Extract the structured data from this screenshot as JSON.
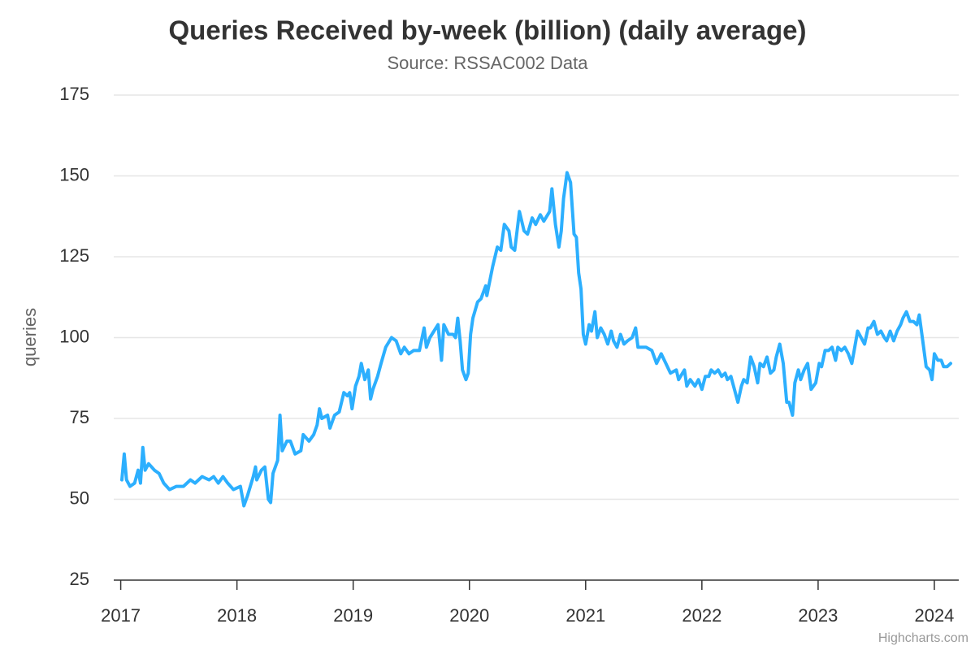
{
  "chart_data": {
    "type": "line",
    "title": "Queries Received by-week (billion) (daily average)",
    "subtitle": "Source: RSSAC002 Data",
    "y_label": "queries",
    "credits": "Highcharts.com",
    "xlim": [
      2016.94,
      2024.21
    ],
    "xticks": [
      2017,
      2018,
      2019,
      2020,
      2021,
      2022,
      2023,
      2024
    ],
    "ylim": [
      25,
      175
    ],
    "yticks": [
      25,
      50,
      75,
      100,
      125,
      150,
      175
    ],
    "grid": true,
    "x": [
      2017.01,
      2017.03,
      2017.05,
      2017.08,
      2017.12,
      2017.15,
      2017.17,
      2017.19,
      2017.21,
      2017.24,
      2017.29,
      2017.33,
      2017.37,
      2017.42,
      2017.48,
      2017.54,
      2017.6,
      2017.64,
      2017.7,
      2017.76,
      2017.8,
      2017.84,
      2017.88,
      2017.92,
      2017.97,
      2018.03,
      2018.06,
      2018.09,
      2018.14,
      2018.16,
      2018.17,
      2018.21,
      2018.24,
      2018.27,
      2018.29,
      2018.31,
      2018.35,
      2018.37,
      2018.39,
      2018.43,
      2018.46,
      2018.5,
      2018.55,
      2018.57,
      2018.62,
      2018.66,
      2018.69,
      2018.71,
      2018.73,
      2018.78,
      2018.8,
      2018.84,
      2018.88,
      2018.92,
      2018.95,
      2018.97,
      2018.99,
      2019.02,
      2019.05,
      2019.07,
      2019.1,
      2019.13,
      2019.15,
      2019.17,
      2019.21,
      2019.24,
      2019.28,
      2019.33,
      2019.37,
      2019.41,
      2019.44,
      2019.48,
      2019.52,
      2019.57,
      2019.61,
      2019.63,
      2019.66,
      2019.73,
      2019.76,
      2019.78,
      2019.82,
      2019.86,
      2019.88,
      2019.9,
      2019.92,
      2019.94,
      2019.97,
      2019.99,
      2020.01,
      2020.03,
      2020.07,
      2020.1,
      2020.14,
      2020.15,
      2020.2,
      2020.24,
      2020.27,
      2020.3,
      2020.34,
      2020.36,
      2020.39,
      2020.43,
      2020.47,
      2020.5,
      2020.54,
      2020.57,
      2020.61,
      2020.64,
      2020.69,
      2020.71,
      2020.74,
      2020.77,
      2020.79,
      2020.81,
      2020.84,
      2020.87,
      2020.9,
      2020.92,
      2020.94,
      2020.96,
      2020.98,
      2021.0,
      2021.03,
      2021.05,
      2021.08,
      2021.1,
      2021.13,
      2021.16,
      2021.19,
      2021.22,
      2021.24,
      2021.27,
      2021.3,
      2021.33,
      2021.36,
      2021.4,
      2021.43,
      2021.45,
      2021.48,
      2021.52,
      2021.57,
      2021.61,
      2021.65,
      2021.69,
      2021.73,
      2021.78,
      2021.8,
      2021.85,
      2021.87,
      2021.9,
      2021.94,
      2021.97,
      2022.0,
      2022.03,
      2022.06,
      2022.08,
      2022.11,
      2022.14,
      2022.17,
      2022.2,
      2022.22,
      2022.25,
      2022.28,
      2022.31,
      2022.34,
      2022.36,
      2022.39,
      2022.42,
      2022.45,
      2022.48,
      2022.5,
      2022.53,
      2022.56,
      2022.59,
      2022.62,
      2022.64,
      2022.67,
      2022.7,
      2022.73,
      2022.75,
      2022.78,
      2022.8,
      2022.83,
      2022.85,
      2022.88,
      2022.91,
      2022.94,
      2022.98,
      2023.01,
      2023.03,
      2023.06,
      2023.09,
      2023.12,
      2023.15,
      2023.17,
      2023.2,
      2023.23,
      2023.26,
      2023.29,
      2023.31,
      2023.34,
      2023.37,
      2023.4,
      2023.43,
      2023.45,
      2023.48,
      2023.51,
      2023.54,
      2023.57,
      2023.59,
      2023.62,
      2023.65,
      2023.68,
      2023.71,
      2023.73,
      2023.76,
      2023.79,
      2023.82,
      2023.85,
      2023.87,
      2023.9,
      2023.93,
      2023.96,
      2023.98,
      2024.0,
      2024.03,
      2024.06,
      2024.08,
      2024.11,
      2024.14
    ],
    "series": [
      {
        "name": "queries",
        "color": "#2caffe",
        "values": [
          56,
          64,
          56,
          54,
          55,
          59,
          55,
          66,
          59,
          61,
          59,
          58,
          55,
          53,
          54,
          54,
          56,
          55,
          57,
          56,
          57,
          55,
          57,
          55,
          53,
          54,
          48,
          51,
          57,
          60,
          56,
          59,
          60,
          50,
          49,
          58,
          62,
          76,
          65,
          68,
          68,
          64,
          65,
          70,
          68,
          70,
          73,
          78,
          75,
          76,
          72,
          76,
          77,
          83,
          82,
          83,
          78,
          85,
          88,
          92,
          87,
          90,
          81,
          84,
          88,
          92,
          97,
          100,
          99,
          95,
          97,
          95,
          96,
          96,
          103,
          97,
          100,
          104,
          93,
          104,
          101,
          101,
          100,
          106,
          99,
          90,
          87,
          89,
          101,
          106,
          111,
          112,
          116,
          113,
          122,
          128,
          127,
          135,
          133,
          128,
          127,
          139,
          133,
          132,
          137,
          135,
          138,
          136,
          139,
          146,
          135,
          128,
          133,
          143,
          151,
          148,
          132,
          131,
          120,
          115,
          101,
          98,
          104,
          102,
          108,
          100,
          103,
          101,
          98,
          102,
          99,
          97,
          101,
          98,
          99,
          100,
          103,
          97,
          97,
          97,
          96,
          92,
          95,
          92,
          89,
          90,
          87,
          90,
          85,
          87,
          85,
          87,
          84,
          88,
          88,
          90,
          89,
          90,
          88,
          89,
          87,
          88,
          84,
          80,
          85,
          87,
          86,
          94,
          91,
          86,
          92,
          91,
          94,
          89,
          90,
          94,
          98,
          92,
          80,
          80,
          76,
          86,
          90,
          87,
          90,
          92,
          84,
          86,
          92,
          91,
          96,
          96,
          97,
          93,
          97,
          96,
          97,
          95,
          92,
          96,
          102,
          100,
          98,
          103,
          103,
          105,
          101,
          102,
          100,
          99,
          102,
          99,
          102,
          104,
          106,
          108,
          105,
          105,
          104,
          107,
          99,
          91,
          90,
          87,
          95,
          93,
          93,
          91,
          91,
          92
        ]
      }
    ]
  }
}
